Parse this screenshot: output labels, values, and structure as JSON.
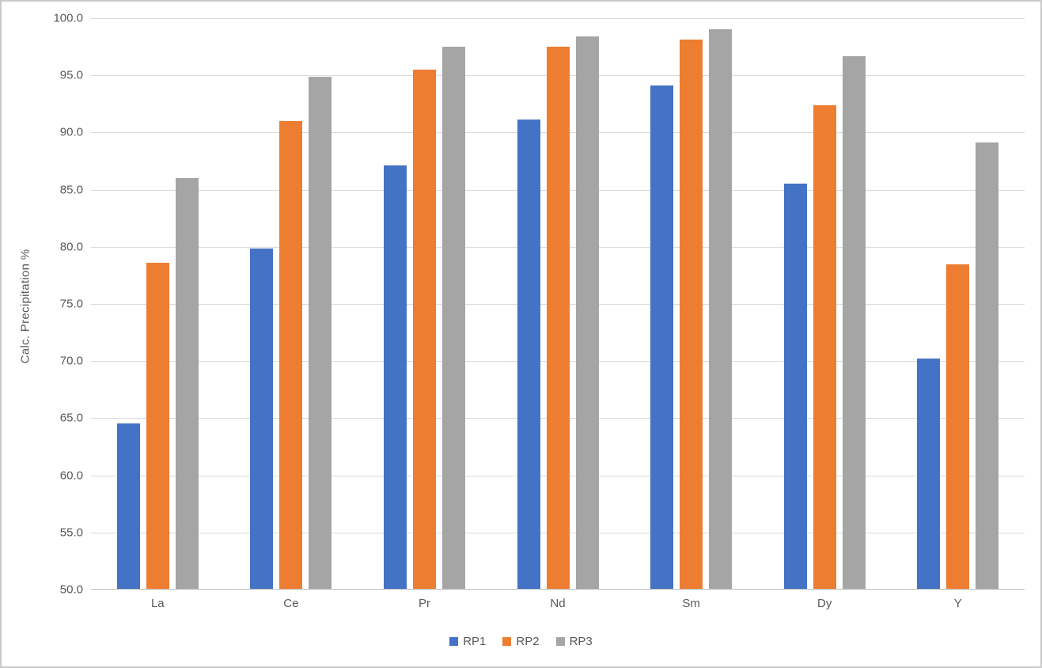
{
  "window": {
    "background_color": "#ffffff",
    "border_color": "#c9c9c9"
  },
  "chart_data": {
    "type": "bar",
    "title": "",
    "xlabel": "",
    "ylabel": "Calc. Precipitation %",
    "categories": [
      "La",
      "Ce",
      "Pr",
      "Nd",
      "Sm",
      "Dy",
      "Y"
    ],
    "series": [
      {
        "name": "RP1",
        "color": "#4472C4",
        "values": [
          64.5,
          79.8,
          87.1,
          91.1,
          94.1,
          85.5,
          70.2
        ]
      },
      {
        "name": "RP2",
        "color": "#ED7D31",
        "values": [
          78.6,
          91.0,
          95.5,
          97.5,
          98.1,
          92.4,
          78.4
        ]
      },
      {
        "name": "RP3",
        "color": "#A5A5A5",
        "values": [
          86.0,
          94.9,
          97.5,
          98.4,
          99.0,
          96.7,
          89.1
        ]
      }
    ],
    "ylim": [
      50,
      100
    ],
    "y_tick_step": 5,
    "y_tick_labels": [
      "50.0",
      "55.0",
      "60.0",
      "65.0",
      "70.0",
      "75.0",
      "80.0",
      "85.0",
      "90.0",
      "95.0",
      "100.0"
    ],
    "grid": true,
    "legend_position": "bottom-center",
    "gridline_color": "#d9d9d9",
    "axis_line_color": "#bfbfbf",
    "tick_label_color": "#595959"
  }
}
